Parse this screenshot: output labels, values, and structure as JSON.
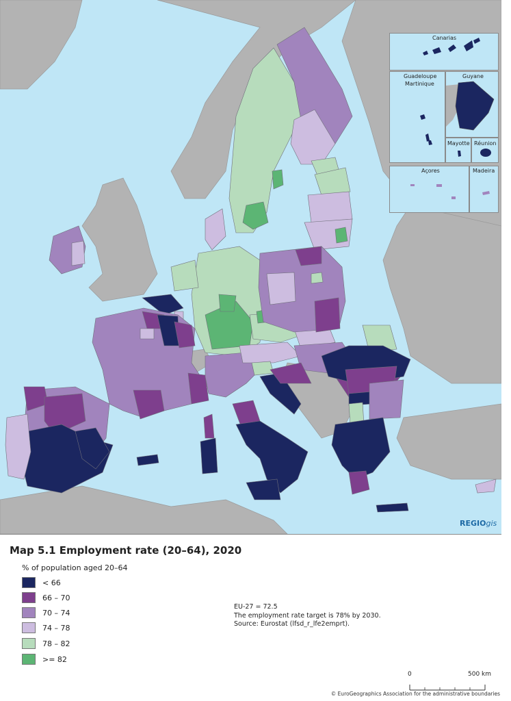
{
  "map": {
    "insets": [
      "Canarias",
      "Guadeloupe",
      "Martinique",
      "Guyane",
      "Mayotte",
      "Réunion",
      "Açores",
      "Madeira"
    ],
    "logo_text": "REGIO",
    "logo_suffix": "gis"
  },
  "legend": {
    "title": "Map 5.1 Employment rate (20–64), 2020",
    "subtitle": "% of population aged 20–64",
    "classes": [
      {
        "label": "< 66",
        "color": "#1b2660"
      },
      {
        "label": "66 – 70",
        "color": "#7e3f8d"
      },
      {
        "label": "70 – 74",
        "color": "#a184bd"
      },
      {
        "label": "74 – 78",
        "color": "#cdbde0"
      },
      {
        "label": "78 – 82",
        "color": "#b7dcbc"
      },
      {
        "label": ">= 82",
        "color": "#5cb574"
      }
    ]
  },
  "notes": {
    "eu_value": "EU-27 = 72.5",
    "target": "The employment rate target is 78% by 2030.",
    "source": "Source: Eurostat (lfsd_r_lfe2emprt)."
  },
  "scale": {
    "start": "0",
    "end": "500 km"
  },
  "credit": "© EuroGeographics Association for the administrative boundaries",
  "colors": {
    "sea": "#bfe6f6",
    "non_eu_land": "#b3b3b3",
    "border": "#8a8a8a"
  }
}
